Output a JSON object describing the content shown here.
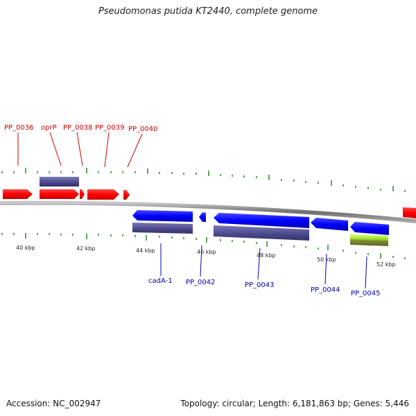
{
  "title": "Pseudomonas putida KT2440, complete genome",
  "footer": {
    "accession": "Accession: NC_002947",
    "summary": "Topology: circular; Length: 6,181,863 bp; Genes: 5,446"
  },
  "colors": {
    "forward_gene": "#ff0000",
    "reverse_gene": "#0000ff",
    "cds_feature": "#4b4a8c",
    "highlight_feature": "#b0f040",
    "backbone": "#7a7a7a",
    "ticks": "#2f8f2f",
    "forward_label": "#cc0000",
    "reverse_label": "#0000aa"
  },
  "ruler": {
    "unit": "kbp",
    "labels": [
      "40 kbp",
      "42 kbp",
      "44 kbp",
      "46 kbp",
      "48 kbp",
      "50 kbp",
      "52 kbp"
    ]
  },
  "genes_forward": [
    {
      "name": "PP_0036"
    },
    {
      "name": "oprP"
    },
    {
      "name": "PP_0038"
    },
    {
      "name": "PP_0039"
    },
    {
      "name": "PP_0040"
    }
  ],
  "genes_reverse": [
    {
      "name": "cadA-1"
    },
    {
      "name": "PP_0042"
    },
    {
      "name": "PP_0043"
    },
    {
      "name": "PP_0044"
    },
    {
      "name": "PP_0045"
    }
  ]
}
